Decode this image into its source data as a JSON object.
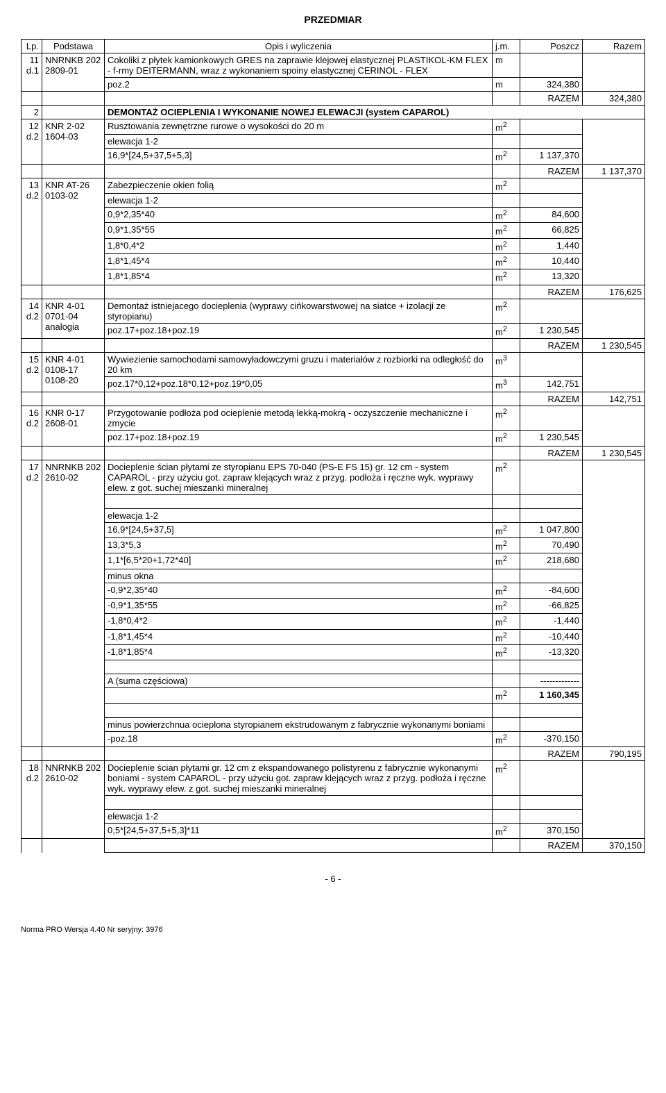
{
  "title": "PRZEDMIAR",
  "columns": {
    "lp": "Lp.",
    "podstawa": "Podstawa",
    "opis": "Opis i wyliczenia",
    "jm": "j.m.",
    "poszcz": "Poszcz",
    "razem": "Razem"
  },
  "rows": [
    {
      "lp": "11",
      "lp2": "d.1",
      "podstawa": "NNRNKB 202 2809-01",
      "opis": "Cokoliki z płytek kamionkowych GRES na zaprawie klejowej elastycznej PLASTIKOL-KM FLEX - f-rmy DEITERMANN, wraz z wykonaniem spoiny elastycznej CERINOL - FLEX",
      "jm": "m",
      "sublines": [
        {
          "opis": "poz.2",
          "jm": "m",
          "poszcz": "324,380"
        }
      ],
      "razem_row": {
        "label": "RAZEM",
        "value": "324,380"
      }
    },
    {
      "section": {
        "lp": "2",
        "title": "DEMONTAŻ  OCIEPLENIA I WYKONANIE NOWEJ ELEWACJI (system CAPAROL)"
      }
    },
    {
      "lp": "12",
      "lp2": "d.2",
      "podstawa": "KNR 2-02 1604-03",
      "opis": "Rusztowania zewnętrzne rurowe o wysokości do 20 m",
      "jm": "m2",
      "blank_line": true,
      "sublines": [
        {
          "opis": "elewacja 1-2"
        },
        {
          "opis": "16,9*[24,5+37,5+5,3]",
          "jm": "m2",
          "poszcz": "1 137,370"
        }
      ],
      "razem_row": {
        "label": "RAZEM",
        "value": "1 137,370"
      }
    },
    {
      "lp": "13",
      "lp2": "d.2",
      "podstawa": "KNR AT-26 0103-02",
      "opis": "Zabezpieczenie okien folią",
      "jm": "m2",
      "sublines": [
        {
          "opis": "elewacja 1-2"
        },
        {
          "opis": "0,9*2,35*40",
          "jm": "m2",
          "poszcz": "84,600"
        },
        {
          "opis": "0,9*1,35*55",
          "jm": "m2",
          "poszcz": "66,825"
        },
        {
          "opis": "1,8*0,4*2",
          "jm": "m2",
          "poszcz": "1,440"
        },
        {
          "opis": "1,8*1,45*4",
          "jm": "m2",
          "poszcz": "10,440"
        },
        {
          "opis": "1,8*1,85*4",
          "jm": "m2",
          "poszcz": "13,320"
        }
      ],
      "razem_row": {
        "label": "RAZEM",
        "value": "176,625"
      }
    },
    {
      "lp": "14",
      "lp2": "d.2",
      "podstawa": "KNR 4-01 0701-04 analogia",
      "opis": "Demontaż istniejacego docieplenia (wyprawy cińkowarstwowej na siatce + izolacji ze styropianu)",
      "jm": "m2",
      "sublines": [
        {
          "opis": "poz.17+poz.18+poz.19",
          "jm": "m2",
          "poszcz": "1 230,545"
        }
      ],
      "razem_row": {
        "label": "RAZEM",
        "value": "1 230,545"
      }
    },
    {
      "lp": "15",
      "lp2": "d.2",
      "podstawa": "KNR 4-01 0108-17 0108-20",
      "opis": "Wywiezienie samochodami samowyładowczymi gruzu i materiałów z rozbiorki na odległość do 20 km",
      "jm": "m3",
      "sublines": [
        {
          "opis": "poz.17*0,12+poz.18*0,12+poz.19*0,05",
          "jm": "m3",
          "poszcz": "142,751"
        }
      ],
      "razem_row": {
        "label": "RAZEM",
        "value": "142,751"
      }
    },
    {
      "lp": "16",
      "lp2": "d.2",
      "podstawa": "KNR 0-17 2608-01",
      "opis": "Przygotowanie podłoża pod ocieplenie metodą lekką-mokrą - oczyszczenie mechaniczne i zmycie",
      "jm": "m2",
      "sublines": [
        {
          "opis": "poz.17+poz.18+poz.19",
          "jm": "m2",
          "poszcz": "1 230,545"
        }
      ],
      "razem_row": {
        "label": "RAZEM",
        "value": "1 230,545"
      }
    },
    {
      "lp": "17",
      "lp2": "d.2",
      "podstawa": "NNRNKB 202 2610-02",
      "opis": "Docieplenie ścian  płytami ze styropianu EPS 70-040 (PS-E FS 15) gr. 12 cm - system CAPAROL - przy użyciu got. zapraw klejących wraz z przyg.  podłoża i ręczne wyk. wyprawy elew. z got. suchej mieszanki mineralnej",
      "jm": "m2",
      "sublines": [
        {
          "opis": ""
        },
        {
          "opis": "elewacja 1-2"
        },
        {
          "opis": "16,9*[24,5+37,5]",
          "jm": "m2",
          "poszcz": "1 047,800"
        },
        {
          "opis": "13,3*5,3",
          "jm": "m2",
          "poszcz": "70,490"
        },
        {
          "opis": "1,1*[6,5*20+1,72*40]",
          "jm": "m2",
          "poszcz": "218,680"
        },
        {
          "opis": "minus okna"
        },
        {
          "opis": "-0,9*2,35*40",
          "jm": "m2",
          "poszcz": "-84,600"
        },
        {
          "opis": "-0,9*1,35*55",
          "jm": "m2",
          "poszcz": "-66,825"
        },
        {
          "opis": "-1,8*0,4*2",
          "jm": "m2",
          "poszcz": "-1,440"
        },
        {
          "opis": "-1,8*1,45*4",
          "jm": "m2",
          "poszcz": "-10,440"
        },
        {
          "opis": "-1,8*1,85*4",
          "jm": "m2",
          "poszcz": "-13,320"
        },
        {
          "opis": ""
        },
        {
          "opis": "A  (suma częściowa)",
          "poszcz": "-------------"
        },
        {
          "opis": "",
          "jm": "m2",
          "poszcz": "1 160,345",
          "bold": true
        },
        {
          "opis": ""
        },
        {
          "opis": "minus powierzchnua ocieplona styropianem ekstrudowanym z fabrycznie wykonanymi boniami"
        },
        {
          "opis": "-poz.18",
          "jm": "m2",
          "poszcz": "-370,150"
        }
      ],
      "razem_row": {
        "label": "RAZEM",
        "value": "790,195"
      }
    },
    {
      "lp": "18",
      "lp2": "d.2",
      "podstawa": "NNRNKB 202 2610-02",
      "opis": "Docieplenie ścian  płytami gr. 12 cm z ekspandowanego polistyrenu z fabrycznie wykonanymi boniami - system CAPAROL - przy użyciu got. zapraw klejących wraz z przyg.  podłoża i ręczne wyk. wyprawy elew. z got. suchej mieszanki mineralnej",
      "jm": "m2",
      "sublines": [
        {
          "opis": ""
        },
        {
          "opis": "elewacja 1-2"
        },
        {
          "opis": "0,5*[24,5+37,5+5,3]*11",
          "jm": "m2",
          "poszcz": "370,150"
        }
      ],
      "razem_row": {
        "label": "RAZEM",
        "value": "370,150"
      }
    }
  ],
  "page_number": "- 6 -",
  "footer": "Norma PRO Wersja 4.40 Nr seryjny: 3976"
}
